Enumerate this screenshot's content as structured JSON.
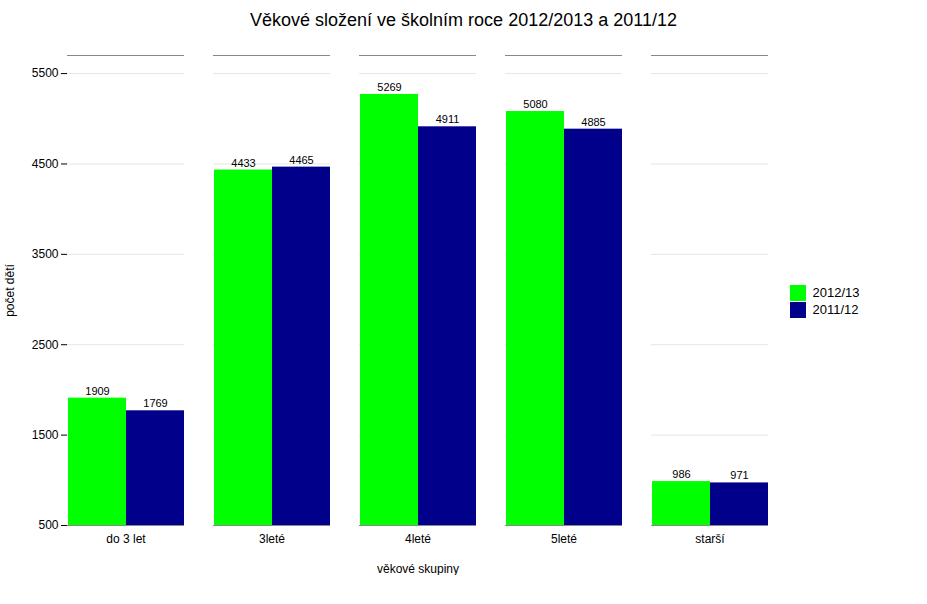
{
  "chart_data": {
    "type": "bar",
    "title": "Věkové složení ve školním roce 2012/2013 a 2011/12",
    "categories": [
      "do 3 let",
      "3leté",
      "4leté",
      "5leté",
      "starší"
    ],
    "series": [
      {
        "name": "2012/13",
        "color": "#00ff00",
        "values": [
          1909,
          4433,
          5269,
          5080,
          986
        ]
      },
      {
        "name": "2011/12",
        "color": "#00008b",
        "values": [
          1769,
          4465,
          4911,
          4885,
          971
        ]
      }
    ],
    "xlabel": "věkové skupiny",
    "ylabel": "počet dětí",
    "ylim": [
      500,
      5700
    ],
    "yticks": [
      500,
      1500,
      2500,
      3500,
      4500,
      5500
    ],
    "grid": true,
    "legend": "right",
    "data_labels": true
  }
}
